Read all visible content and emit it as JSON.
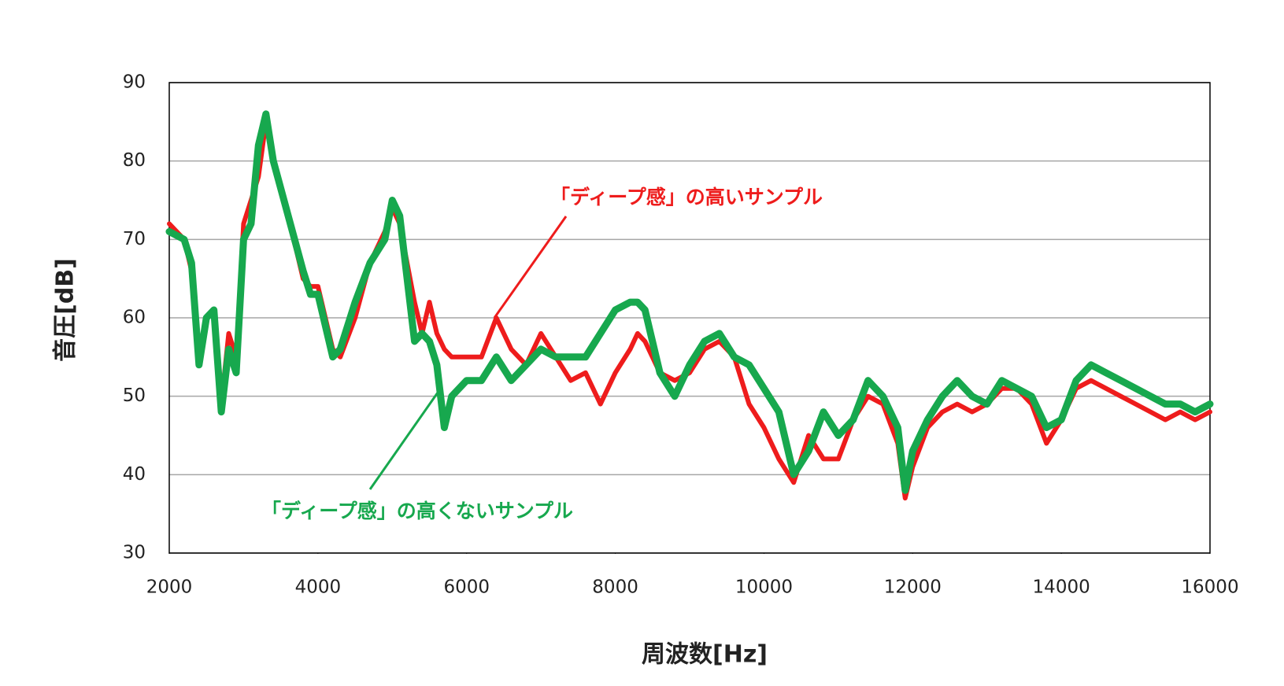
{
  "chart_data": {
    "type": "line",
    "xlabel": "周波数[Hz]",
    "ylabel": "音圧[dB]",
    "xlim": [
      2000,
      16000
    ],
    "xticks": [
      2000,
      4000,
      6000,
      8000,
      10000,
      12000,
      14000,
      16000
    ],
    "ylim": [
      30,
      90
    ],
    "yticks": [
      30,
      40,
      50,
      60,
      70,
      80,
      90
    ],
    "grid": true,
    "x": [
      2000,
      2200,
      2300,
      2400,
      2500,
      2600,
      2700,
      2800,
      2900,
      3000,
      3100,
      3200,
      3300,
      3400,
      3600,
      3800,
      3900,
      4000,
      4200,
      4300,
      4500,
      4700,
      4900,
      5000,
      5100,
      5300,
      5400,
      5500,
      5600,
      5700,
      5800,
      6000,
      6200,
      6400,
      6600,
      6800,
      7000,
      7200,
      7400,
      7600,
      7800,
      8000,
      8200,
      8300,
      8400,
      8600,
      8800,
      9000,
      9200,
      9400,
      9600,
      9800,
      10000,
      10200,
      10400,
      10600,
      10800,
      11000,
      11200,
      11400,
      11600,
      11800,
      11900,
      12000,
      12200,
      12400,
      12600,
      12800,
      13000,
      13200,
      13400,
      13600,
      13800,
      14000,
      14200,
      14400,
      14600,
      14800,
      15000,
      15200,
      15400,
      15600,
      15800,
      16000
    ],
    "series": [
      {
        "name": "「ディープ感」の高いサンプル",
        "color": "#ee1c1c",
        "values": [
          72,
          70,
          66,
          55,
          60,
          61,
          49,
          58,
          55,
          72,
          75,
          78,
          85,
          80,
          73,
          65,
          64,
          64,
          56,
          55,
          60,
          67,
          71,
          74,
          72,
          62,
          58,
          62,
          58,
          56,
          55,
          55,
          55,
          60,
          56,
          54,
          58,
          55,
          52,
          53,
          49,
          53,
          56,
          58,
          57,
          53,
          52,
          53,
          56,
          57,
          55,
          49,
          46,
          42,
          39,
          45,
          42,
          42,
          47,
          50,
          49,
          44,
          37,
          41,
          46,
          48,
          49,
          48,
          49,
          51,
          51,
          49,
          44,
          47,
          51,
          52,
          51,
          50,
          49,
          48,
          47,
          48,
          47,
          48
        ]
      },
      {
        "name": "「ディープ感」の高くないサンプル",
        "color": "#17a84e",
        "values": [
          71,
          70,
          67,
          54,
          60,
          61,
          48,
          56,
          53,
          70,
          72,
          82,
          86,
          80,
          73,
          66,
          63,
          63,
          55,
          56,
          62,
          67,
          70,
          75,
          73,
          57,
          58,
          57,
          54,
          46,
          50,
          52,
          52,
          55,
          52,
          54,
          56,
          55,
          55,
          55,
          58,
          61,
          62,
          62,
          61,
          53,
          50,
          54,
          57,
          58,
          55,
          54,
          51,
          48,
          40,
          43,
          48,
          45,
          47,
          52,
          50,
          46,
          38,
          43,
          47,
          50,
          52,
          50,
          49,
          52,
          51,
          50,
          46,
          47,
          52,
          54,
          53,
          52,
          51,
          50,
          49,
          49,
          48,
          49
        ]
      }
    ]
  }
}
